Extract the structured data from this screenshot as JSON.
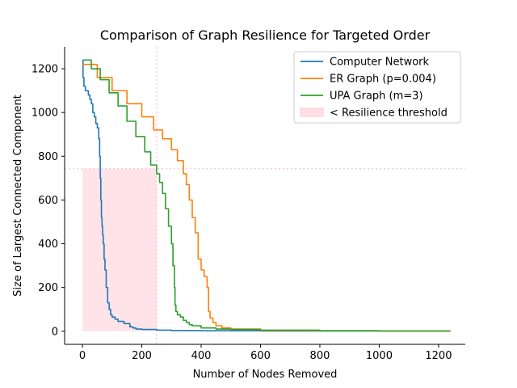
{
  "chart_data": {
    "type": "line",
    "title": "Comparison of Graph Resilience for Targeted Order",
    "xlabel": "Number of Nodes Removed",
    "ylabel": "Size of Largest Connected Component",
    "xlim": [
      -60,
      1290
    ],
    "ylim": [
      -60,
      1300
    ],
    "xticks": [
      0,
      200,
      400,
      600,
      800,
      1000,
      1200
    ],
    "yticks": [
      0,
      200,
      400,
      600,
      800,
      1000,
      1200
    ],
    "xtick_labels": [
      "0",
      "200",
      "400",
      "600",
      "800",
      "1000",
      "1200"
    ],
    "ytick_labels": [
      "0",
      "200",
      "400",
      "600",
      "800",
      "1000",
      "1200"
    ],
    "legend_position": "top-right",
    "spines": "left-bottom",
    "threshold": {
      "label": "< Resilience threshold",
      "x": 250,
      "y": 743,
      "color": "#ffc0cb"
    },
    "series": [
      {
        "name": "Computer Network",
        "color": "#1f77b4",
        "x": [
          0,
          2,
          5,
          10,
          20,
          25,
          30,
          35,
          40,
          45,
          50,
          55,
          58,
          60,
          62,
          64,
          66,
          68,
          70,
          73,
          76,
          80,
          85,
          90,
          95,
          100,
          110,
          120,
          140,
          160,
          170,
          180,
          200,
          250,
          300,
          400,
          600,
          800,
          1000,
          1239
        ],
        "y": [
          1239,
          1160,
          1120,
          1100,
          1080,
          1060,
          1040,
          1000,
          980,
          950,
          930,
          880,
          800,
          700,
          600,
          520,
          480,
          440,
          400,
          330,
          280,
          200,
          130,
          100,
          75,
          65,
          55,
          45,
          35,
          20,
          15,
          10,
          8,
          5,
          3,
          2,
          1,
          1,
          1,
          0
        ]
      },
      {
        "name": "ER Graph (p=0.004)",
        "color": "#ff7f0e",
        "x": [
          0,
          50,
          100,
          150,
          200,
          240,
          270,
          300,
          320,
          340,
          350,
          360,
          370,
          380,
          390,
          400,
          410,
          420,
          425,
          430,
          440,
          450,
          470,
          500,
          600,
          800,
          1000,
          1239
        ],
        "y": [
          1220,
          1160,
          1100,
          1040,
          980,
          920,
          880,
          830,
          780,
          720,
          670,
          600,
          520,
          450,
          330,
          280,
          250,
          200,
          90,
          60,
          40,
          25,
          15,
          10,
          3,
          2,
          1,
          0
        ]
      },
      {
        "name": "UPA Graph (m=3)",
        "color": "#2ca02c",
        "x": [
          0,
          30,
          60,
          90,
          120,
          150,
          180,
          210,
          230,
          250,
          260,
          270,
          280,
          290,
          300,
          305,
          310,
          312,
          315,
          320,
          330,
          340,
          350,
          360,
          370,
          400,
          450,
          500,
          600,
          800,
          1000,
          1239
        ],
        "y": [
          1240,
          1200,
          1150,
          1090,
          1030,
          960,
          890,
          820,
          760,
          720,
          680,
          630,
          560,
          480,
          400,
          300,
          200,
          120,
          90,
          75,
          65,
          50,
          40,
          30,
          25,
          15,
          10,
          8,
          5,
          2,
          1,
          0
        ]
      }
    ]
  }
}
